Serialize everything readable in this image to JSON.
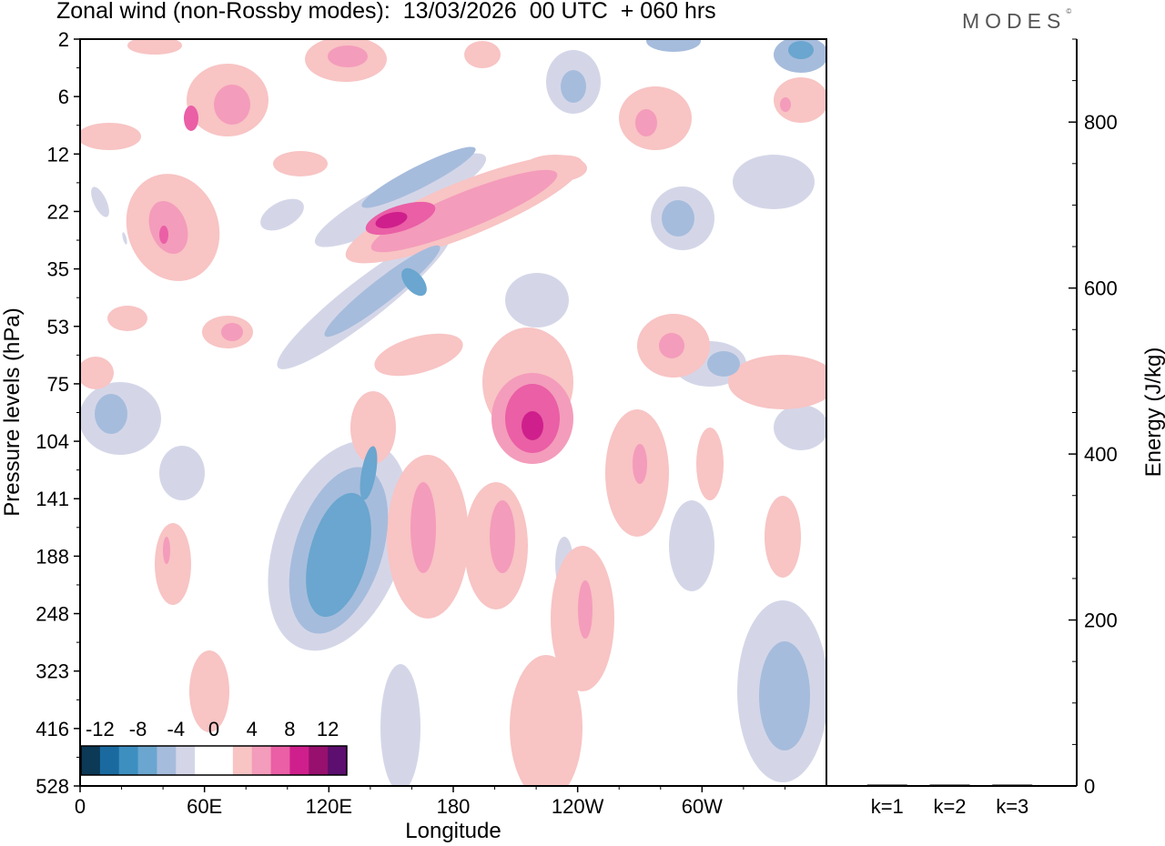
{
  "header": {
    "title": "Zonal wind (non-Rossby modes):  13/03/2026  00 UTC  + 060 hrs",
    "logo": "MODES",
    "logo_mark": "©"
  },
  "chart_data": [
    {
      "type": "heatmap",
      "title": "Zonal wind (non-Rossby modes):  13/03/2026  00 UTC  + 060 hrs",
      "xlabel": "Longitude",
      "ylabel": "Pressure levels (hPa)",
      "x_ticks": [
        "0",
        "60E",
        "120E",
        "180",
        "120W",
        "60W"
      ],
      "x_tick_degrees": [
        0,
        60,
        120,
        180,
        240,
        300
      ],
      "xlim": [
        0,
        360
      ],
      "y_ticks": [
        "2",
        "6",
        "12",
        "22",
        "35",
        "53",
        "75",
        "104",
        "141",
        "188",
        "248",
        "323",
        "416",
        "528"
      ],
      "y_direction": "pressure increasing downward",
      "colorbar": {
        "labels": [
          "-12",
          "-8",
          "-4",
          "0",
          "4",
          "8",
          "12"
        ],
        "placement": "bottom-left",
        "colors": [
          "#0b3956",
          "#1a6aa0",
          "#3d8fc0",
          "#6aa6cf",
          "#a6bcdc",
          "#d4d6e8",
          "#ffffff",
          "#ffffff",
          "#f8c4c4",
          "#f49cbb",
          "#ea5fa6",
          "#cf1f8c",
          "#97106e",
          "#5c0f6e"
        ]
      },
      "features": [
        {
          "sign": "positive",
          "lon": 162,
          "level": "22",
          "peak": 9
        },
        {
          "sign": "positive",
          "lon": 212,
          "level": "104",
          "peak": 9
        },
        {
          "sign": "negative",
          "lon": 126,
          "level": "188",
          "peak": -7
        },
        {
          "sign": "negative",
          "lon": 156,
          "level": "35",
          "peak": -7
        },
        {
          "sign": "negative",
          "lon": 24,
          "level": "104",
          "peak": -6
        },
        {
          "sign": "negative",
          "lon": 330,
          "level": "416",
          "peak": -5
        }
      ]
    },
    {
      "type": "bar",
      "ylabel": "Energy (J/kg)",
      "categories": [
        "k=1",
        "k=2",
        "k=3"
      ],
      "values": [
        1,
        1,
        1
      ],
      "ylim": [
        0,
        900
      ],
      "y_ticks": [
        0,
        200,
        400,
        600,
        800
      ]
    }
  ],
  "colors": {
    "positive": "#f49cbb",
    "negative": "#6aa6cf",
    "axis": "#000000"
  }
}
